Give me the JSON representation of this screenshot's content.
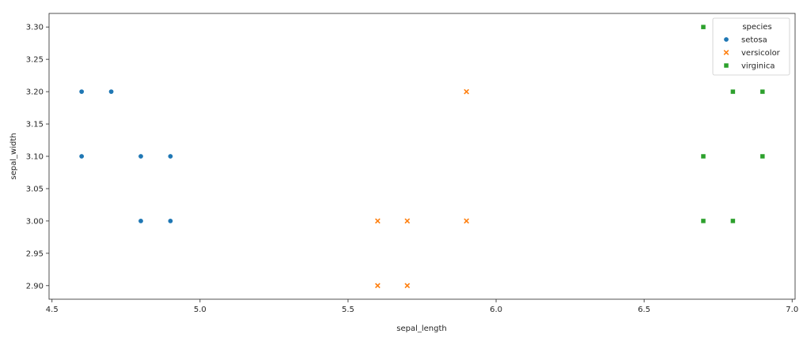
{
  "chart_data": {
    "type": "scatter",
    "title": "",
    "xlabel": "sepal_length",
    "ylabel": "sepal_width",
    "xlim": [
      4.49,
      7.01
    ],
    "ylim": [
      2.879,
      3.321
    ],
    "xticks": [
      4.5,
      5.0,
      5.5,
      6.0,
      6.5,
      7.0
    ],
    "xtick_labels": [
      "4.5",
      "5.0",
      "5.5",
      "6.0",
      "6.5",
      "7.0"
    ],
    "yticks": [
      2.9,
      2.95,
      3.0,
      3.05,
      3.1,
      3.15,
      3.2,
      3.25,
      3.3
    ],
    "ytick_labels": [
      "2.90",
      "2.95",
      "3.00",
      "3.05",
      "3.10",
      "3.15",
      "3.20",
      "3.25",
      "3.30"
    ],
    "grid": false,
    "legend": {
      "title": "species",
      "placement": "top-right"
    },
    "series": [
      {
        "name": "setosa",
        "marker": "circle",
        "color": "#1f77b4",
        "x": [
          4.6,
          4.7,
          4.6,
          4.8,
          4.9,
          4.8,
          4.9
        ],
        "y": [
          3.2,
          3.2,
          3.1,
          3.1,
          3.1,
          3.0,
          3.0
        ]
      },
      {
        "name": "versicolor",
        "marker": "x",
        "color": "#ff7f0e",
        "x": [
          5.9,
          5.6,
          5.7,
          5.9,
          5.6,
          5.7
        ],
        "y": [
          3.2,
          3.0,
          3.0,
          3.0,
          2.9,
          2.9
        ]
      },
      {
        "name": "virginica",
        "marker": "square",
        "color": "#2ca02c",
        "x": [
          6.7,
          6.8,
          6.9,
          6.7,
          6.9,
          6.7,
          6.8
        ],
        "y": [
          3.3,
          3.2,
          3.2,
          3.1,
          3.1,
          3.0,
          3.0
        ]
      }
    ]
  }
}
